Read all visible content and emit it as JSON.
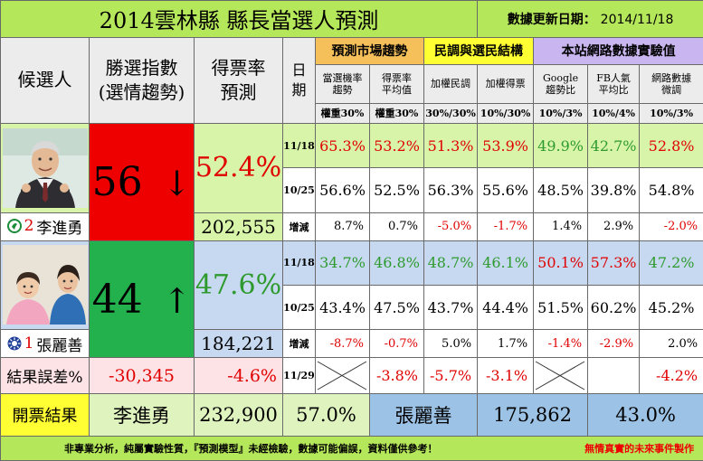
{
  "title": "2014雲林縣 縣長當選人預測",
  "update_label": "數據更新日期：",
  "update_date": "2014/11/18",
  "headers": {
    "candidate": "候選人",
    "index_line1": "勝選指數",
    "index_line2": "(選情趨勢)",
    "rate_line1": "得票率",
    "rate_line2": "預測",
    "date_line1": "日",
    "date_line2": "期",
    "group_market": "預測市場趨勢",
    "group_poll": "民調與選民結構",
    "group_net": "本站網路數據實驗值",
    "cols": [
      {
        "line1": "當選機率",
        "line2": "趨勢"
      },
      {
        "line1": "得票率",
        "line2": "平均值"
      },
      {
        "line1": "加權民調",
        "line2": ""
      },
      {
        "line1": "加權得票",
        "line2": ""
      },
      {
        "line1": "Google",
        "line2": "趨勢比"
      },
      {
        "line1": "FB人氣",
        "line2": "平均比"
      },
      {
        "line1": "網路數據",
        "line2": "微調"
      }
    ],
    "weights": [
      "權重30%",
      "權重30%",
      "30%/30%",
      "10%/30%",
      "10%/3%",
      "10%/4%",
      "10%/3%"
    ]
  },
  "candidates": [
    {
      "number": "2",
      "name": "李進勇",
      "index": "56",
      "arrow": "↓",
      "rate": "52.4%",
      "votes": "202,555",
      "rows": [
        {
          "date": "11/18",
          "values": [
            "65.3%",
            "53.2%",
            "51.3%",
            "53.9%",
            "49.9%",
            "42.7%",
            "52.8%"
          ]
        },
        {
          "date": "10/25",
          "values": [
            "56.6%",
            "52.5%",
            "56.3%",
            "55.6%",
            "48.5%",
            "39.8%",
            "54.8%"
          ]
        },
        {
          "date": "增減",
          "values": [
            "8.7%",
            "0.7%",
            "-5.0%",
            "-1.7%",
            "1.4%",
            "2.9%",
            "-2.0%"
          ]
        }
      ]
    },
    {
      "number": "1",
      "name": "張麗善",
      "index": "44",
      "arrow": "↑",
      "rate": "47.6%",
      "votes": "184,221",
      "rows": [
        {
          "date": "11/18",
          "values": [
            "34.7%",
            "46.8%",
            "48.7%",
            "46.1%",
            "50.1%",
            "57.3%",
            "47.2%"
          ]
        },
        {
          "date": "10/25",
          "values": [
            "43.4%",
            "47.5%",
            "43.7%",
            "44.4%",
            "51.5%",
            "60.2%",
            "45.2%"
          ]
        },
        {
          "date": "增減",
          "values": [
            "-8.7%",
            "-0.7%",
            "5.0%",
            "1.7%",
            "-1.4%",
            "-2.9%",
            "2.0%"
          ]
        }
      ]
    }
  ],
  "error_row": {
    "label": "結果誤差%",
    "votes_diff": "-30,345",
    "rate_diff": "-4.6%",
    "date": "11/29",
    "values": [
      "",
      "-3.8%",
      "-5.7%",
      "-3.1%",
      "",
      "",
      "-4.2%"
    ]
  },
  "result_row": {
    "label": "開票結果",
    "winner_name": "李進勇",
    "winner_votes": "232,900",
    "winner_rate": "57.0%",
    "loser_name": "張麗善",
    "loser_votes": "175,862",
    "loser_rate": "43.0%"
  },
  "footer": {
    "note": "非專業分析，純屬實驗性質，『預測模型』未經檢驗，數據可能偏誤，資料僅供參考！",
    "credit": "無情真實的未來事件製作"
  },
  "colors": {
    "title_bg": "#b5e75a",
    "market_bg": "#f5c05a",
    "poll_bg": "#ffff33",
    "net_bg": "#c9b5ef",
    "cand1_bg": "#d7f4a8",
    "cand2_bg": "#c6d9f1",
    "down_index_bg": "#ee0000",
    "up_index_bg": "#22b14c",
    "negative_text": "#e00000",
    "positive_text": "#2e9a2e"
  },
  "icons": [
    "green-party-logo-icon",
    "kmt-emblem-icon",
    "crossed-box-icon"
  ]
}
